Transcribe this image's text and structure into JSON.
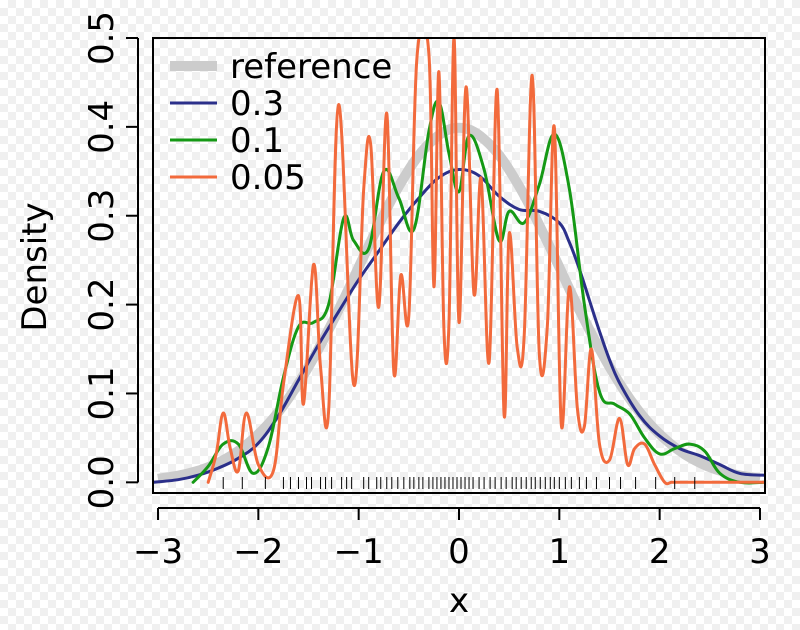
{
  "chart_data": {
    "type": "line",
    "title": "",
    "xlabel": "x",
    "ylabel": "Density",
    "xlim": [
      -3.05,
      3.05
    ],
    "ylim": [
      -0.012,
      0.5
    ],
    "xticks": [
      -3,
      -2,
      -1,
      0,
      1,
      2,
      3
    ],
    "xtick_labels": [
      "−3",
      "−2",
      "−1",
      "0",
      "1",
      "2",
      "3"
    ],
    "yticks": [
      0.0,
      0.1,
      0.2,
      0.3,
      0.4,
      0.5
    ],
    "ytick_labels": [
      "0.0",
      "0.1",
      "0.2",
      "0.3",
      "0.4",
      "0.5"
    ],
    "grid": false,
    "legend_position": "top-left",
    "series": [
      {
        "name": "reference",
        "color": "#cccccc",
        "style": "thick",
        "x": [
          -3,
          -2.7,
          -2.4,
          -2.1,
          -1.8,
          -1.5,
          -1.2,
          -0.9,
          -0.6,
          -0.3,
          0,
          0.3,
          0.6,
          0.9,
          1.2,
          1.5,
          1.8,
          2.1,
          2.4,
          2.7,
          3
        ],
        "y": [
          0.004,
          0.01,
          0.022,
          0.044,
          0.079,
          0.13,
          0.194,
          0.266,
          0.333,
          0.381,
          0.399,
          0.381,
          0.333,
          0.266,
          0.194,
          0.13,
          0.079,
          0.044,
          0.022,
          0.01,
          0.004
        ]
      },
      {
        "name": "0.3",
        "color": "#2b2f8a",
        "style": "normal",
        "x": [
          -3.05,
          -2.8,
          -2.6,
          -2.4,
          -2.2,
          -2.0,
          -1.8,
          -1.6,
          -1.4,
          -1.2,
          -1.0,
          -0.8,
          -0.6,
          -0.4,
          -0.2,
          0.0,
          0.2,
          0.4,
          0.6,
          0.8,
          1.0,
          1.1,
          1.2,
          1.3,
          1.4,
          1.5,
          1.6,
          1.8,
          2.0,
          2.2,
          2.4,
          2.6,
          2.8,
          3.05
        ],
        "y": [
          0.0,
          0.003,
          0.008,
          0.016,
          0.027,
          0.044,
          0.075,
          0.115,
          0.155,
          0.192,
          0.228,
          0.26,
          0.292,
          0.32,
          0.343,
          0.352,
          0.345,
          0.322,
          0.307,
          0.305,
          0.292,
          0.27,
          0.24,
          0.205,
          0.17,
          0.138,
          0.112,
          0.075,
          0.052,
          0.038,
          0.03,
          0.02,
          0.01,
          0.008
        ]
      },
      {
        "name": "0.1",
        "color": "#159915",
        "style": "normal",
        "x": [
          -2.65,
          -2.5,
          -2.35,
          -2.2,
          -2.05,
          -1.9,
          -1.75,
          -1.6,
          -1.45,
          -1.3,
          -1.15,
          -1.05,
          -0.9,
          -0.75,
          -0.6,
          -0.45,
          -0.3,
          -0.2,
          -0.1,
          0.0,
          0.1,
          0.25,
          0.4,
          0.5,
          0.65,
          0.8,
          0.95,
          1.1,
          1.25,
          1.4,
          1.55,
          1.7,
          1.85,
          2.0,
          2.15,
          2.3,
          2.45,
          2.6,
          2.8,
          3.05
        ],
        "y": [
          0.0,
          0.018,
          0.043,
          0.043,
          0.01,
          0.04,
          0.118,
          0.175,
          0.18,
          0.2,
          0.297,
          0.272,
          0.263,
          0.35,
          0.32,
          0.285,
          0.395,
          0.428,
          0.37,
          0.327,
          0.39,
          0.352,
          0.272,
          0.305,
          0.292,
          0.335,
          0.392,
          0.33,
          0.2,
          0.102,
          0.088,
          0.077,
          0.05,
          0.032,
          0.038,
          0.043,
          0.035,
          0.01,
          0.0,
          0.0
        ]
      },
      {
        "name": "0.05",
        "color": "#f26a3c",
        "style": "normal",
        "x": [
          -2.5,
          -2.42,
          -2.35,
          -2.28,
          -2.2,
          -2.12,
          -2.0,
          -1.85,
          -1.75,
          -1.6,
          -1.55,
          -1.45,
          -1.38,
          -1.3,
          -1.2,
          -1.05,
          -0.95,
          -0.88,
          -0.8,
          -0.72,
          -0.65,
          -0.58,
          -0.5,
          -0.42,
          -0.3,
          -0.25,
          -0.2,
          -0.15,
          -0.1,
          -0.05,
          0.0,
          0.07,
          0.15,
          0.22,
          0.3,
          0.38,
          0.45,
          0.5,
          0.58,
          0.65,
          0.73,
          0.8,
          0.88,
          0.95,
          1.02,
          1.1,
          1.18,
          1.25,
          1.32,
          1.4,
          1.5,
          1.6,
          1.68,
          1.75,
          1.85,
          1.95,
          2.05,
          2.12,
          2.2,
          2.28,
          2.35,
          2.45,
          2.55,
          2.7,
          3.05
        ],
        "y": [
          0.0,
          0.032,
          0.078,
          0.038,
          0.013,
          0.078,
          0.02,
          0.013,
          0.11,
          0.21,
          0.088,
          0.245,
          0.13,
          0.08,
          0.425,
          0.11,
          0.33,
          0.38,
          0.197,
          0.415,
          0.125,
          0.233,
          0.187,
          0.477,
          0.482,
          0.22,
          0.462,
          0.17,
          0.18,
          0.5,
          0.18,
          0.445,
          0.212,
          0.342,
          0.135,
          0.442,
          0.076,
          0.28,
          0.152,
          0.165,
          0.458,
          0.145,
          0.175,
          0.4,
          0.065,
          0.22,
          0.083,
          0.063,
          0.15,
          0.043,
          0.025,
          0.072,
          0.02,
          0.038,
          0.043,
          0.02,
          0.0,
          0.0,
          0.0,
          0.0,
          0.0,
          0.0,
          0.0,
          0.0,
          0.0
        ]
      }
    ],
    "rug": [
      -2.35,
      -2.16,
      -1.93,
      -1.75,
      -1.68,
      -1.6,
      -1.52,
      -1.47,
      -1.38,
      -1.33,
      -1.27,
      -1.17,
      -1.12,
      -1.07,
      -0.95,
      -0.9,
      -0.82,
      -0.78,
      -0.72,
      -0.67,
      -0.61,
      -0.55,
      -0.49,
      -0.45,
      -0.4,
      -0.36,
      -0.3,
      -0.26,
      -0.22,
      -0.18,
      -0.14,
      -0.1,
      -0.06,
      -0.02,
      0.02,
      0.06,
      0.1,
      0.14,
      0.2,
      0.25,
      0.31,
      0.36,
      0.42,
      0.47,
      0.53,
      0.57,
      0.62,
      0.67,
      0.72,
      0.76,
      0.81,
      0.86,
      0.91,
      0.95,
      1.0,
      1.06,
      1.12,
      1.2,
      1.27,
      1.37,
      1.5,
      1.61,
      1.76,
      1.96,
      2.15,
      2.35
    ]
  }
}
